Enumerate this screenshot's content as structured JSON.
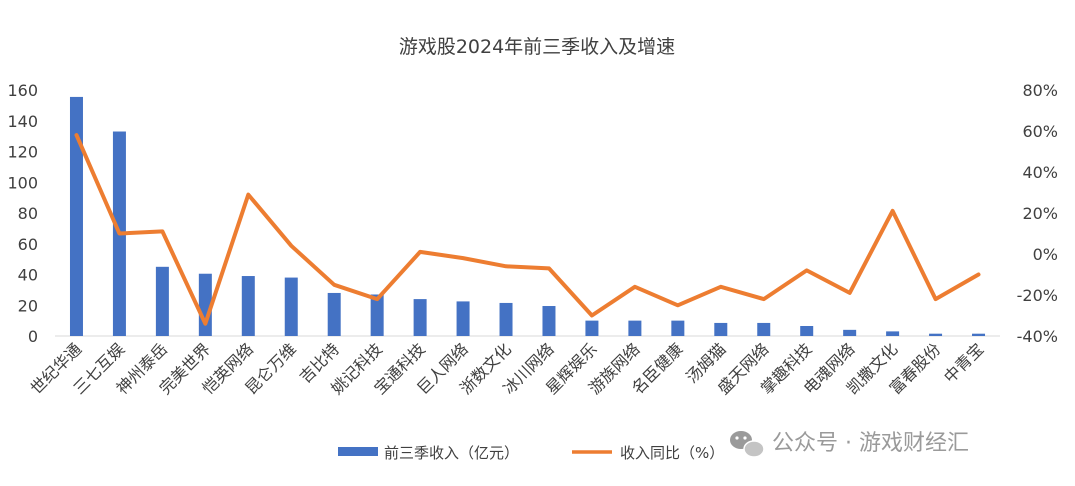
{
  "chart_data": {
    "type": "bar",
    "title": "游戏股2024年前三季收入及增速",
    "categories": [
      "世纪华通",
      "三七互娱",
      "神州泰岳",
      "完美世界",
      "恺英网络",
      "昆仑万维",
      "吉比特",
      "姚记科技",
      "宝通科技",
      "巨人网络",
      "浙数文化",
      "冰川网络",
      "星辉娱乐",
      "游族网络",
      "名臣健康",
      "汤姆猫",
      "盛天网络",
      "掌趣科技",
      "电魂网络",
      "凯撒文化",
      "富春股份",
      "中青宝"
    ],
    "series": [
      {
        "name": "前三季收入（亿元）",
        "type": "bar",
        "axis": "left",
        "color": "#4472C4",
        "values": [
          155.5,
          133,
          45,
          40.5,
          39,
          38,
          28,
          27,
          24,
          22.5,
          21.5,
          19.5,
          10,
          10,
          10,
          8.5,
          8.5,
          6.5,
          4,
          3,
          1.5,
          1.5
        ]
      },
      {
        "name": "收入同比（%）",
        "type": "line",
        "axis": "right",
        "color": "#ED7D31",
        "values": [
          58,
          10,
          11,
          -34,
          29,
          4,
          -15,
          -22,
          1,
          -2,
          -6,
          -7,
          -30,
          -16,
          -25,
          -16,
          -22,
          -8,
          -19,
          21,
          -22,
          -10
        ]
      }
    ],
    "y_left": {
      "min": 0,
      "max": 160,
      "ticks": [
        "0",
        "20",
        "40",
        "60",
        "80",
        "100",
        "120",
        "140",
        "160"
      ]
    },
    "y_right": {
      "min": -40,
      "max": 80,
      "ticks": [
        "-40%",
        "-20%",
        "0%",
        "20%",
        "40%",
        "60%",
        "80%"
      ]
    },
    "grid": false,
    "legend": "bottom"
  },
  "watermark": {
    "text": "公众号 · 游戏财经汇",
    "icon": "wechat-icon"
  }
}
